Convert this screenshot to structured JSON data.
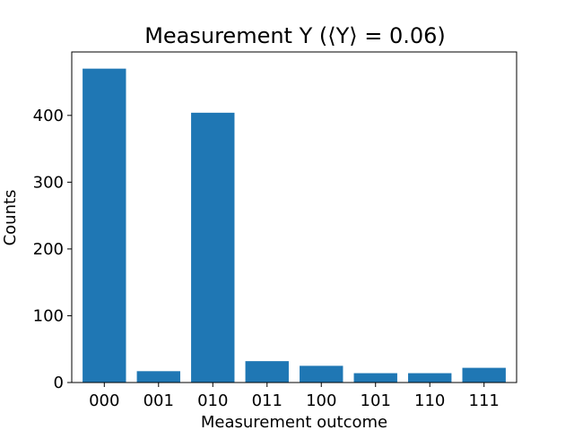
{
  "chart_data": {
    "type": "bar",
    "title": "Measurement Y (⟨Y⟩ = 0.06)",
    "xlabel": "Measurement outcome",
    "ylabel": "Counts",
    "categories": [
      "000",
      "001",
      "010",
      "011",
      "100",
      "101",
      "110",
      "111"
    ],
    "values": [
      470,
      17,
      404,
      32,
      25,
      14,
      14,
      22
    ],
    "ylim": [
      0,
      495
    ],
    "yticks": [
      0,
      100,
      200,
      300,
      400
    ],
    "grid": false,
    "bar_color": "#1f77b4"
  }
}
